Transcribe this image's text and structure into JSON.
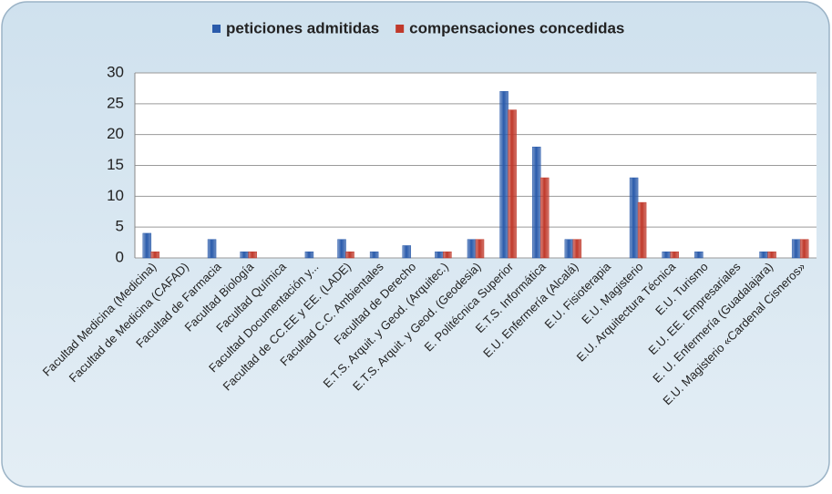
{
  "chart_data": {
    "type": "bar",
    "categories": [
      "Facultad Medicina (Medicina)",
      "Facultad de Medicina (CAFAD)",
      "Facultad de Farmacia",
      "Facultad Biología",
      "Facultad Química",
      "Facultad Documentación y...",
      "Facultad de CC.EE y EE. (LADE)",
      "Facultad C.C. Ambientales",
      "Facultad de Derecho",
      "E.T.S. Arquit. y Geod. (Arquitec.)",
      "E.T.S. Arquit. y Geod. (Geodesia)",
      "E. Politécnica Superior",
      "E.T.S. Informática",
      "E.U. Enfermería (Alcalá)",
      "E.U. Fisioterapia",
      "E.U. Magisterio",
      "E.U. Arquitectura Técnica",
      "E.U. Turismo",
      "E.U. EE. Empresariales",
      "E. U. Enfermería (Guadalajara)",
      "E.U. Magisterio «Cardenal Cisneros»"
    ],
    "series": [
      {
        "name": "peticiones admitidas",
        "color": "#2a5bab",
        "values": [
          4,
          0,
          3,
          1,
          0,
          1,
          3,
          1,
          2,
          1,
          3,
          27,
          18,
          3,
          0,
          13,
          1,
          1,
          0,
          1,
          3
        ]
      },
      {
        "name": "compensaciones concedidas",
        "color": "#c0392b",
        "values": [
          1,
          0,
          0,
          1,
          0,
          0,
          1,
          0,
          0,
          1,
          3,
          24,
          13,
          3,
          0,
          9,
          1,
          0,
          0,
          1,
          3
        ]
      }
    ],
    "ylim": [
      0,
      30
    ],
    "yticks": [
      0,
      5,
      10,
      15,
      20,
      25,
      30
    ],
    "grid": true,
    "legend": "top"
  }
}
